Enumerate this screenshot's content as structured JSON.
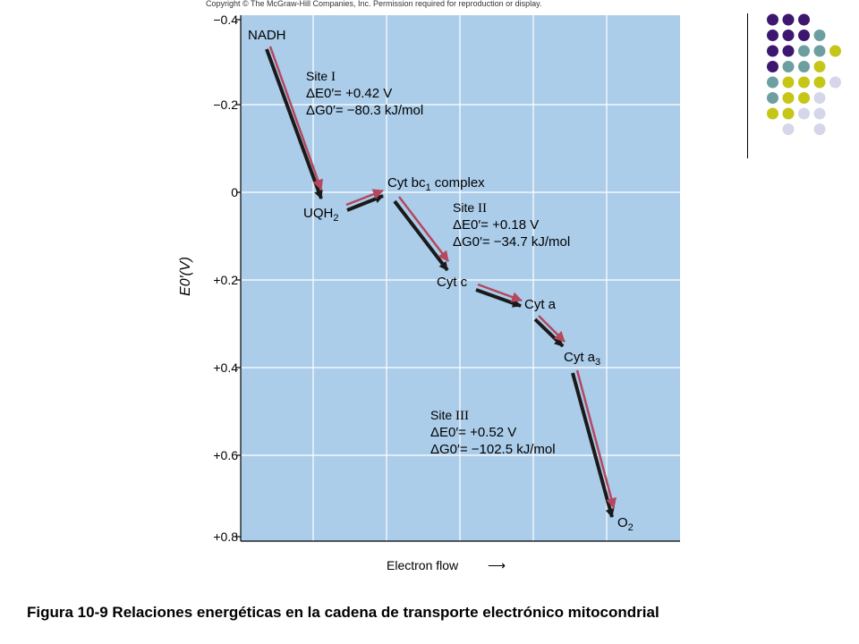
{
  "copyright": "Copyright © The McGraw-Hill Companies, Inc. Permission required for reproduction or display.",
  "y_axis": {
    "label": "E0′(V)",
    "ticks": [
      "−0.4",
      "−0.2",
      "0",
      "+0.2",
      "+0.4",
      "+0.6",
      "+0.8"
    ]
  },
  "x_axis": {
    "label": "Electron flow",
    "arrow": "⟶"
  },
  "carriers": {
    "nadh": "NADH",
    "uqh2": "UQH",
    "uqh2_sub": "2",
    "cyt_bc1": "Cyt bc",
    "cyt_bc1_sub": "1",
    "cyt_bc1_suffix": " complex",
    "cyt_c": "Cyt c",
    "cyt_a": "Cyt a",
    "cyt_a3": "Cyt a",
    "cyt_a3_sub": "3",
    "o2": "O",
    "o2_sub": "2"
  },
  "sites": [
    {
      "label": "Site",
      "numeral": "I",
      "delta_e": "ΔE0′= +0.42 V",
      "delta_g": "ΔG0′= −80.3 kJ/mol"
    },
    {
      "label": "Site",
      "numeral": "II",
      "delta_e": "ΔE0′= +0.18 V",
      "delta_g": "ΔG0′= −34.7 kJ/mol"
    },
    {
      "label": "Site",
      "numeral": "III",
      "delta_e": "ΔE0′= +0.52 V",
      "delta_g": "ΔG0′= −102.5 kJ/mol"
    }
  ],
  "caption": "Figura 10-9 Relaciones energéticas en la cadena de transporte electrónico mitocondrial",
  "colors": {
    "panel": "#abcdea",
    "grid": "#ffffff",
    "arrow_dark": "#1a1a1a",
    "arrow_red": "#b5475e",
    "dot_purple": "#3d1670",
    "dot_teal": "#6e9fa0",
    "dot_yellow": "#c6c617",
    "dot_lavender": "#d6d6ea"
  }
}
